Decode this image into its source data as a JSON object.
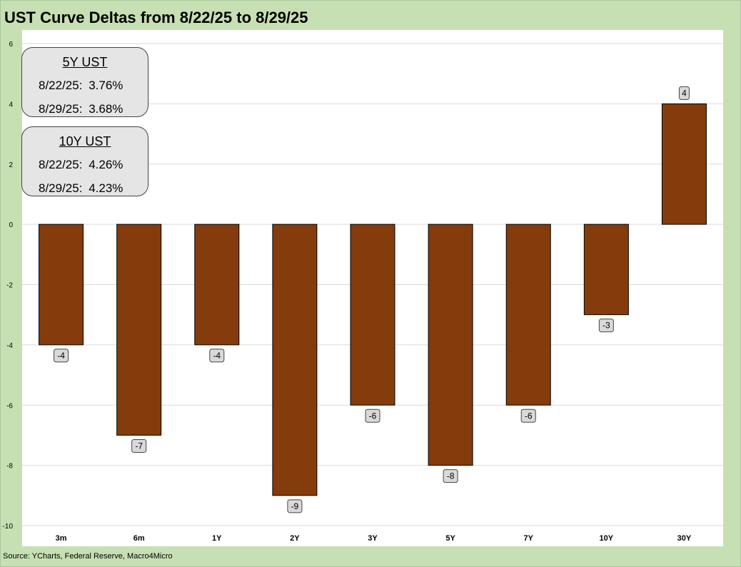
{
  "title": "UST Curve Deltas from 8/22/25 to 8/29/25",
  "source": "Source: YCharts, Federal Reserve, Macro4Micro",
  "colors": {
    "bar": "#843c0c",
    "frame": "#c6e0b4",
    "label_bg": "#d9d9d9",
    "grid": "#d9d9d9"
  },
  "info_boxes": [
    {
      "header": "5Y UST",
      "rows": [
        {
          "date": "8/22/25:",
          "value": "3.76%"
        },
        {
          "date": "8/29/25:",
          "value": "3.68%"
        }
      ]
    },
    {
      "header": "10Y UST",
      "rows": [
        {
          "date": "8/22/25:",
          "value": "4.26%"
        },
        {
          "date": "8/29/25:",
          "value": "4.23%"
        }
      ]
    }
  ],
  "chart_data": {
    "type": "bar",
    "title": "UST Curve Deltas from 8/22/25 to 8/29/25",
    "categories": [
      "3m",
      "6m",
      "1Y",
      "2Y",
      "3Y",
      "5Y",
      "7Y",
      "10Y",
      "30Y"
    ],
    "values": [
      -4,
      -7,
      -4,
      -9,
      -6,
      -8,
      -6,
      -3,
      4
    ],
    "data_labels": [
      "-4",
      "-7",
      "-4",
      "-9",
      "-6",
      "-8",
      "-6",
      "-3",
      "4"
    ],
    "ylim": [
      -10,
      6
    ],
    "yticks": [
      6,
      4,
      2,
      0,
      -2,
      -4,
      -6,
      -8,
      -10
    ],
    "ytick_labels": [
      "6",
      "4",
      "2",
      "0",
      "-2",
      "-4",
      "-6",
      "-8",
      "-10"
    ],
    "xlabel": "",
    "ylabel": "",
    "grid": true
  }
}
